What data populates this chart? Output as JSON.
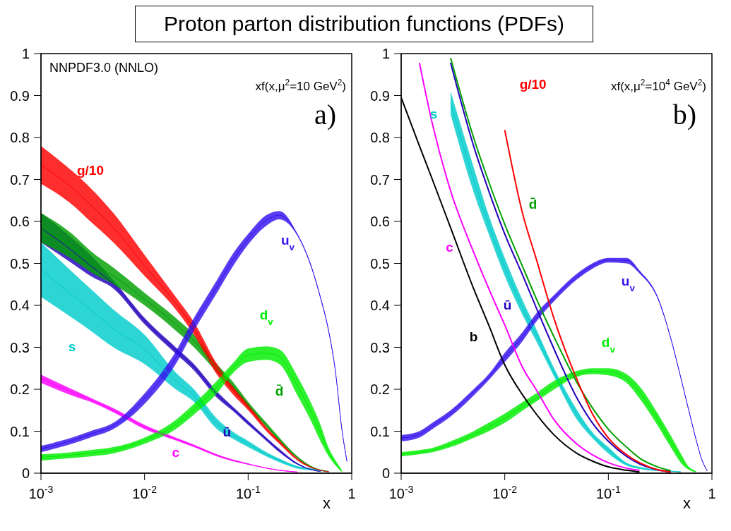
{
  "chart_data": [
    {
      "type": "line",
      "title": "Proton parton distribution functions (PDFs)",
      "xlabel": "x",
      "log": "x",
      "xlim": [
        0.001,
        1
      ],
      "ylim": [
        0,
        1
      ],
      "xticks": [
        {
          "value": 0.001,
          "label": "10$^{-3}$"
        },
        {
          "value": 0.01,
          "label": "10$^{-2}$"
        },
        {
          "value": 0.1,
          "label": "10$^{-1}$"
        },
        1
      ],
      "yticks": [
        0,
        0.1,
        0.2,
        0.3,
        0.4,
        0.5,
        0.6,
        0.7,
        0.8,
        0.9,
        1
      ],
      "marker": "none",
      "line_style": "solid",
      "grid": false,
      "annotations": [
        "NNPDF3.0 (NNLO)",
        "xf(x,μ$^{2}$=10 GeV$^{2}$)",
        "a)"
      ],
      "x": [
        0.001,
        0.002,
        0.003,
        0.005,
        0.01,
        0.02,
        0.03,
        0.05,
        0.07,
        0.1,
        0.15,
        0.2,
        0.3,
        0.4,
        0.5,
        0.6,
        0.7,
        0.8,
        0.9
      ],
      "series": [
        {
          "name": "c",
          "color": "#ff00ff",
          "values": [
            0.225,
            0.193,
            0.175,
            0.15,
            0.11,
            0.082,
            0.065,
            0.043,
            0.031,
            0.022,
            0.012,
            0.007,
            0.003,
            null,
            null,
            null,
            null,
            null,
            null
          ],
          "lower": [
            0.215,
            0.185,
            0.17,
            0.145,
            0.105,
            0.078,
            0.062,
            0.04,
            0.029,
            0.02,
            0.011,
            0.006,
            0.002,
            null,
            null,
            null,
            null,
            null,
            null
          ],
          "upper": [
            0.235,
            0.2,
            0.18,
            0.155,
            0.115,
            0.085,
            0.068,
            0.045,
            0.033,
            0.023,
            0.013,
            0.008,
            0.003,
            null,
            null,
            null,
            null,
            null,
            null
          ]
        },
        {
          "name": "s",
          "color": "#00cccc",
          "values": [
            0.485,
            0.425,
            0.39,
            0.345,
            0.295,
            0.22,
            0.185,
            0.118,
            0.092,
            0.07,
            0.045,
            0.031,
            0.014,
            0.01,
            0.007,
            0.004,
            null,
            null,
            null
          ],
          "lower": [
            0.42,
            0.37,
            0.34,
            0.3,
            0.26,
            0.2,
            0.17,
            0.105,
            0.083,
            0.062,
            0.04,
            0.026,
            0.011,
            0.007,
            0.005,
            0.003,
            null,
            null,
            null
          ],
          "upper": [
            0.55,
            0.48,
            0.44,
            0.39,
            0.33,
            0.24,
            0.2,
            0.13,
            0.1,
            0.077,
            0.05,
            0.035,
            0.017,
            0.012,
            0.009,
            0.005,
            null,
            null,
            null
          ]
        },
        {
          "name": "ū",
          "color": "#2200bb",
          "values": [
            0.585,
            0.53,
            0.495,
            0.45,
            0.363,
            0.293,
            0.253,
            0.188,
            0.155,
            0.12,
            0.081,
            0.054,
            0.022,
            0.009,
            0.004,
            null,
            null,
            null,
            null
          ],
          "lower": [
            0.55,
            0.5,
            0.47,
            0.44,
            0.355,
            0.285,
            0.245,
            0.18,
            0.15,
            0.115,
            0.077,
            0.05,
            0.02,
            0.008,
            0.003,
            null,
            null,
            null,
            null
          ],
          "upper": [
            0.62,
            0.56,
            0.52,
            0.46,
            0.37,
            0.3,
            0.26,
            0.195,
            0.16,
            0.125,
            0.085,
            0.058,
            0.024,
            0.01,
            0.004,
            null,
            null,
            null,
            null
          ]
        },
        {
          "name": "d̄",
          "color": "#00a000",
          "values": [
            0.585,
            0.54,
            0.505,
            0.47,
            0.415,
            0.355,
            0.315,
            0.25,
            0.21,
            0.163,
            0.115,
            0.08,
            0.038,
            0.016,
            0.007,
            0.003,
            null,
            null,
            null
          ],
          "lower": [
            0.55,
            0.51,
            0.48,
            0.45,
            0.4,
            0.34,
            0.3,
            0.24,
            0.2,
            0.155,
            0.11,
            0.075,
            0.035,
            0.014,
            0.006,
            0.002,
            null,
            null,
            null
          ],
          "upper": [
            0.62,
            0.57,
            0.53,
            0.49,
            0.43,
            0.37,
            0.33,
            0.26,
            0.22,
            0.17,
            0.12,
            0.085,
            0.04,
            0.018,
            0.008,
            0.003,
            null,
            null,
            null
          ]
        },
        {
          "name": "g/10",
          "color": "#ff0000",
          "values": [
            0.735,
            0.68,
            0.64,
            0.585,
            0.495,
            0.405,
            0.345,
            0.248,
            0.2,
            0.158,
            0.105,
            0.074,
            0.033,
            0.015,
            0.007,
            0.004,
            null,
            null,
            null
          ],
          "lower": [
            0.69,
            0.64,
            0.6,
            0.55,
            0.47,
            0.39,
            0.33,
            0.235,
            0.19,
            0.15,
            0.1,
            0.07,
            0.03,
            0.013,
            0.006,
            0.003,
            null,
            null,
            null
          ],
          "upper": [
            0.78,
            0.72,
            0.68,
            0.62,
            0.52,
            0.42,
            0.36,
            0.26,
            0.21,
            0.165,
            0.11,
            0.078,
            0.035,
            0.016,
            0.008,
            0.004,
            null,
            null,
            null
          ]
        },
        {
          "name": "d$_{v}$",
          "color": "#00ee00",
          "values": [
            0.038,
            0.043,
            0.048,
            0.055,
            0.078,
            0.116,
            0.153,
            0.205,
            0.248,
            0.281,
            0.286,
            0.278,
            0.208,
            0.149,
            0.096,
            0.05,
            0.024,
            0.006,
            null
          ],
          "lower": [
            0.03,
            0.036,
            0.04,
            0.047,
            0.07,
            0.105,
            0.14,
            0.19,
            0.236,
            0.265,
            0.27,
            0.26,
            0.185,
            0.127,
            0.076,
            0.04,
            0.018,
            0.003,
            null
          ],
          "upper": [
            0.045,
            0.05,
            0.055,
            0.062,
            0.085,
            0.127,
            0.165,
            0.22,
            0.26,
            0.297,
            0.302,
            0.295,
            0.23,
            0.17,
            0.115,
            0.06,
            0.03,
            0.008,
            null
          ]
        },
        {
          "name": "u$_{v}$",
          "color": "#3311ee",
          "values": [
            0.058,
            0.078,
            0.093,
            0.113,
            0.178,
            0.275,
            0.355,
            0.445,
            0.505,
            0.558,
            0.603,
            0.615,
            0.568,
            0.498,
            0.418,
            0.338,
            0.238,
            0.108,
            0.028
          ],
          "lower": [
            0.05,
            0.07,
            0.085,
            0.105,
            0.165,
            0.26,
            0.34,
            0.43,
            0.49,
            0.545,
            0.59,
            0.605,
            0.565,
            0.495,
            0.415,
            0.335,
            0.235,
            0.105,
            0.025
          ],
          "upper": [
            0.065,
            0.085,
            0.1,
            0.12,
            0.19,
            0.29,
            0.37,
            0.46,
            0.52,
            0.57,
            0.615,
            0.625,
            0.57,
            0.5,
            0.42,
            0.34,
            0.24,
            0.11,
            0.03
          ]
        }
      ]
    },
    {
      "type": "line",
      "xlabel": "x",
      "log": "x",
      "xlim": [
        0.001,
        1
      ],
      "ylim": [
        0,
        1
      ],
      "xticks": [
        {
          "value": 0.001,
          "label": "10$^{-3}$"
        },
        {
          "value": 0.01,
          "label": "10$^{-2}$"
        },
        {
          "value": 0.1,
          "label": "10$^{-1}$"
        },
        1
      ],
      "yticks": [
        0,
        0.1,
        0.2,
        0.3,
        0.4,
        0.5,
        0.6,
        0.7,
        0.8,
        0.9,
        1
      ],
      "marker": "none",
      "line_style": "solid",
      "grid": false,
      "annotations": [
        "xf(x,μ$^{2}$=10$^{4}$ GeV$^{2}$)",
        "b)"
      ],
      "x": [
        0.001,
        0.0015,
        0.002,
        0.003,
        0.005,
        0.007,
        0.01,
        0.015,
        0.02,
        0.03,
        0.05,
        0.07,
        0.1,
        0.15,
        0.2,
        0.3,
        0.4,
        0.5,
        0.6,
        0.7,
        0.8,
        0.9
      ],
      "series": [
        {
          "name": "b",
          "color": "#000000",
          "values": [
            0.895,
            0.78,
            0.7,
            0.585,
            0.44,
            0.353,
            0.258,
            0.185,
            0.142,
            0.091,
            0.047,
            0.029,
            0.015,
            0.007,
            0.003,
            null,
            null,
            null,
            null,
            null,
            null,
            null
          ]
        },
        {
          "name": "c",
          "color": "#ff00ff",
          "values": [
            null,
            0.978,
            0.833,
            0.673,
            0.527,
            0.44,
            0.353,
            0.25,
            0.2,
            0.127,
            0.069,
            0.044,
            0.025,
            0.012,
            0.007,
            null,
            null,
            null,
            null,
            null,
            null,
            null
          ]
        },
        {
          "name": "s",
          "color": "#00cccc",
          "values": [
            null,
            null,
            null,
            0.883,
            0.7,
            0.593,
            0.492,
            0.393,
            0.331,
            0.24,
            0.139,
            0.091,
            0.055,
            0.022,
            0.013,
            0.007,
            0.005,
            0.003,
            null,
            null,
            null,
            null
          ],
          "lower": [
            null,
            null,
            null,
            0.855,
            0.67,
            0.57,
            0.47,
            0.375,
            0.316,
            0.23,
            0.127,
            0.084,
            0.047,
            0.018,
            0.01,
            0.005,
            0.004,
            0.002,
            null,
            null,
            null,
            null
          ],
          "upper": [
            null,
            null,
            null,
            0.91,
            0.73,
            0.615,
            0.513,
            0.41,
            0.345,
            0.25,
            0.15,
            0.098,
            0.062,
            0.025,
            0.015,
            0.008,
            0.006,
            0.004,
            null,
            null,
            null,
            null
          ]
        },
        {
          "name": "ū",
          "color": "#2200bb",
          "values": [
            null,
            null,
            null,
            0.978,
            0.78,
            0.673,
            0.57,
            0.47,
            0.396,
            0.295,
            0.178,
            0.12,
            0.076,
            0.04,
            0.022,
            0.008,
            0.003,
            null,
            null,
            null,
            null,
            null
          ]
        },
        {
          "name": "d̄",
          "color": "#00a000",
          "values": [
            null,
            null,
            null,
            0.99,
            0.8,
            0.695,
            0.593,
            0.49,
            0.418,
            0.324,
            0.215,
            0.156,
            0.105,
            0.062,
            0.036,
            0.015,
            0.006,
            null,
            null,
            null,
            null,
            null
          ]
        },
        {
          "name": "g/10",
          "color": "#ff0000",
          "values": [
            null,
            null,
            null,
            null,
            null,
            null,
            0.818,
            0.615,
            0.513,
            0.367,
            0.222,
            0.142,
            0.084,
            0.044,
            0.025,
            0.008,
            0.003,
            null,
            null,
            null,
            null,
            null
          ]
        },
        {
          "name": "d$_{v}$",
          "color": "#00ee00",
          "values": [
            0.045,
            0.05,
            0.055,
            0.069,
            0.092,
            0.11,
            0.131,
            0.16,
            0.18,
            0.21,
            0.237,
            0.243,
            0.242,
            0.226,
            0.193,
            0.128,
            0.076,
            0.036,
            0.012,
            0.004,
            null,
            null
          ],
          "lower": [
            0.04,
            0.045,
            0.05,
            0.062,
            0.084,
            0.1,
            0.12,
            0.15,
            0.17,
            0.2,
            0.23,
            0.236,
            0.233,
            0.215,
            0.178,
            0.113,
            0.062,
            0.025,
            0.008,
            0.002,
            null,
            null
          ],
          "upper": [
            0.05,
            0.055,
            0.06,
            0.076,
            0.1,
            0.12,
            0.142,
            0.17,
            0.19,
            0.22,
            0.244,
            0.25,
            0.25,
            0.236,
            0.207,
            0.142,
            0.09,
            0.047,
            0.015,
            0.005,
            null,
            null
          ]
        },
        {
          "name": "u$_{v}$",
          "color": "#3311ee",
          "values": [
            0.084,
            0.093,
            0.113,
            0.143,
            0.193,
            0.229,
            0.276,
            0.327,
            0.37,
            0.418,
            0.469,
            0.494,
            0.508,
            0.507,
            0.48,
            0.418,
            0.322,
            0.228,
            0.148,
            0.082,
            0.032,
            0.006
          ],
          "lower": [
            0.076,
            0.085,
            0.105,
            0.135,
            0.185,
            0.222,
            0.265,
            0.316,
            0.36,
            0.41,
            0.462,
            0.487,
            0.502,
            0.5,
            0.476,
            0.415,
            0.32,
            0.226,
            0.146,
            0.08,
            0.03,
            0.005
          ],
          "upper": [
            0.091,
            0.1,
            0.12,
            0.15,
            0.2,
            0.236,
            0.287,
            0.338,
            0.38,
            0.425,
            0.476,
            0.5,
            0.513,
            0.513,
            0.483,
            0.42,
            0.324,
            0.23,
            0.15,
            0.084,
            0.033,
            0.007
          ]
        }
      ]
    }
  ]
}
